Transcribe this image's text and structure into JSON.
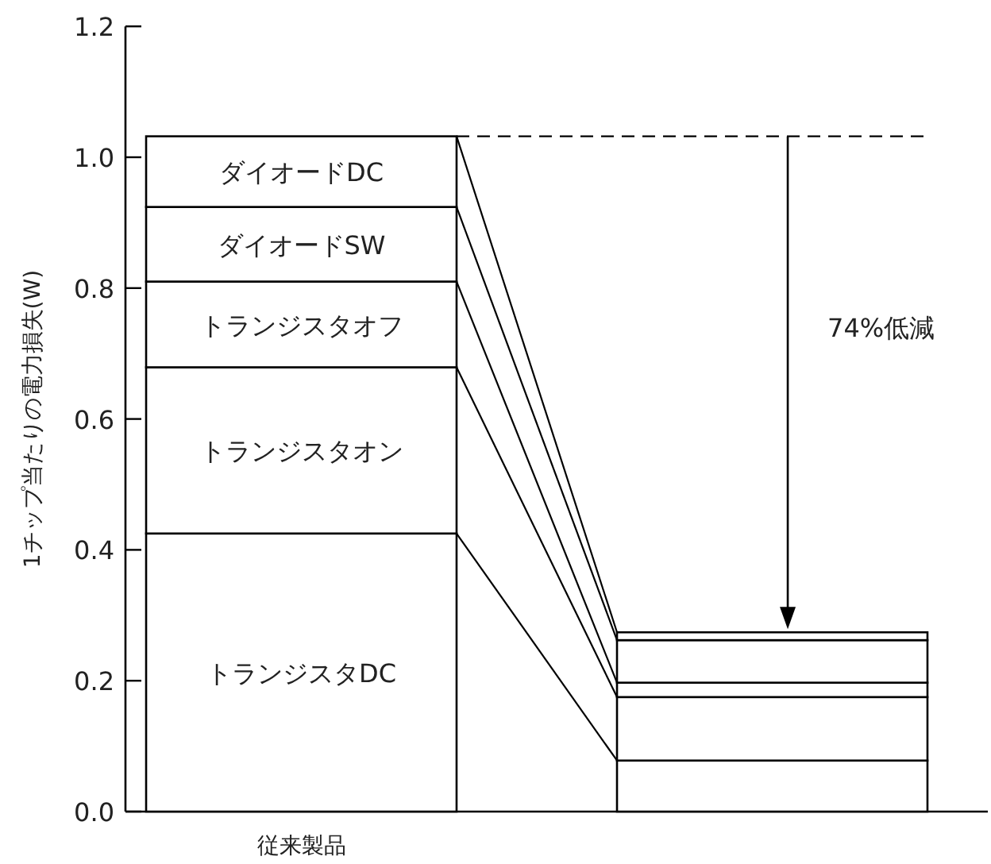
{
  "chart_data": {
    "type": "bar",
    "stacked": true,
    "ylabel": "1チップ当たりの電力損失(W)",
    "categories": [
      "従来製品",
      null
    ],
    "series": [
      {
        "name": "トランジスタDC",
        "color": "#ffffff",
        "values": [
          0.425,
          0.078
        ]
      },
      {
        "name": "トランジスタオン",
        "color": "#ffffff",
        "values": [
          0.254,
          0.097
        ]
      },
      {
        "name": "トランジスタオフ",
        "color": "#ffffff",
        "values": [
          0.131,
          0.022
        ]
      },
      {
        "name": "ダイオードSW",
        "color": "#ffffff",
        "values": [
          0.114,
          0.065
        ]
      },
      {
        "name": "ダイオードDC",
        "color": "#ffffff",
        "values": [
          0.108,
          0.012
        ]
      }
    ],
    "ylim": [
      0,
      1.2
    ],
    "yticks": [
      {
        "value": 0,
        "label": "0.0"
      },
      {
        "value": 0.2,
        "label": "0.2"
      },
      {
        "value": 0.4,
        "label": "0.4"
      },
      {
        "value": 0.6,
        "label": "0.6"
      },
      {
        "value": 0.8,
        "label": "0.8"
      },
      {
        "value": 1,
        "label": "1.0"
      },
      {
        "value": 1.2,
        "label": "1.2"
      }
    ],
    "ref_lines": [
      {
        "axis": "y",
        "value": 1.032,
        "line_style": "dashed"
      }
    ],
    "annotations": [
      "74%低減"
    ]
  }
}
